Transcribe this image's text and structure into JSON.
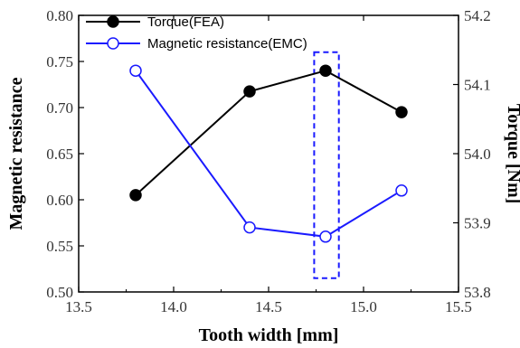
{
  "chart_data": {
    "type": "line",
    "xlabel": "Tooth width [mm]",
    "ylabel_left": "Magnetic resistance",
    "ylabel_right": "Torque [Nm]",
    "xlim": [
      13.5,
      15.5
    ],
    "ylim_left": [
      0.5,
      0.8
    ],
    "ylim_right": [
      53.8,
      54.2
    ],
    "x_ticks": [
      "13.5",
      "14.0",
      "14.5",
      "15.0",
      "15.5"
    ],
    "y_left_ticks": [
      "0.50",
      "0.55",
      "0.60",
      "0.65",
      "0.70",
      "0.75",
      "0.80"
    ],
    "y_right_ticks": [
      "53.8",
      "53.9",
      "54.0",
      "54.1",
      "54.2"
    ],
    "legend_position": "top-left",
    "series": [
      {
        "name": "Torque(FEA)",
        "axis": "right",
        "color": "#000000",
        "marker": "filled-circle",
        "x": [
          13.8,
          14.4,
          14.8,
          15.2
        ],
        "y": [
          53.94,
          54.09,
          54.12,
          54.06
        ]
      },
      {
        "name": "Magnetic resistance(EMC)",
        "axis": "left",
        "color": "#1a1aff",
        "marker": "open-circle",
        "x": [
          13.8,
          14.4,
          14.8,
          15.2
        ],
        "y": [
          0.74,
          0.57,
          0.56,
          0.61
        ]
      }
    ],
    "highlight": {
      "x_range": [
        14.74,
        14.87
      ],
      "y_range_left": [
        0.515,
        0.76
      ],
      "color": "#1a1aff",
      "style": "dashed"
    }
  }
}
